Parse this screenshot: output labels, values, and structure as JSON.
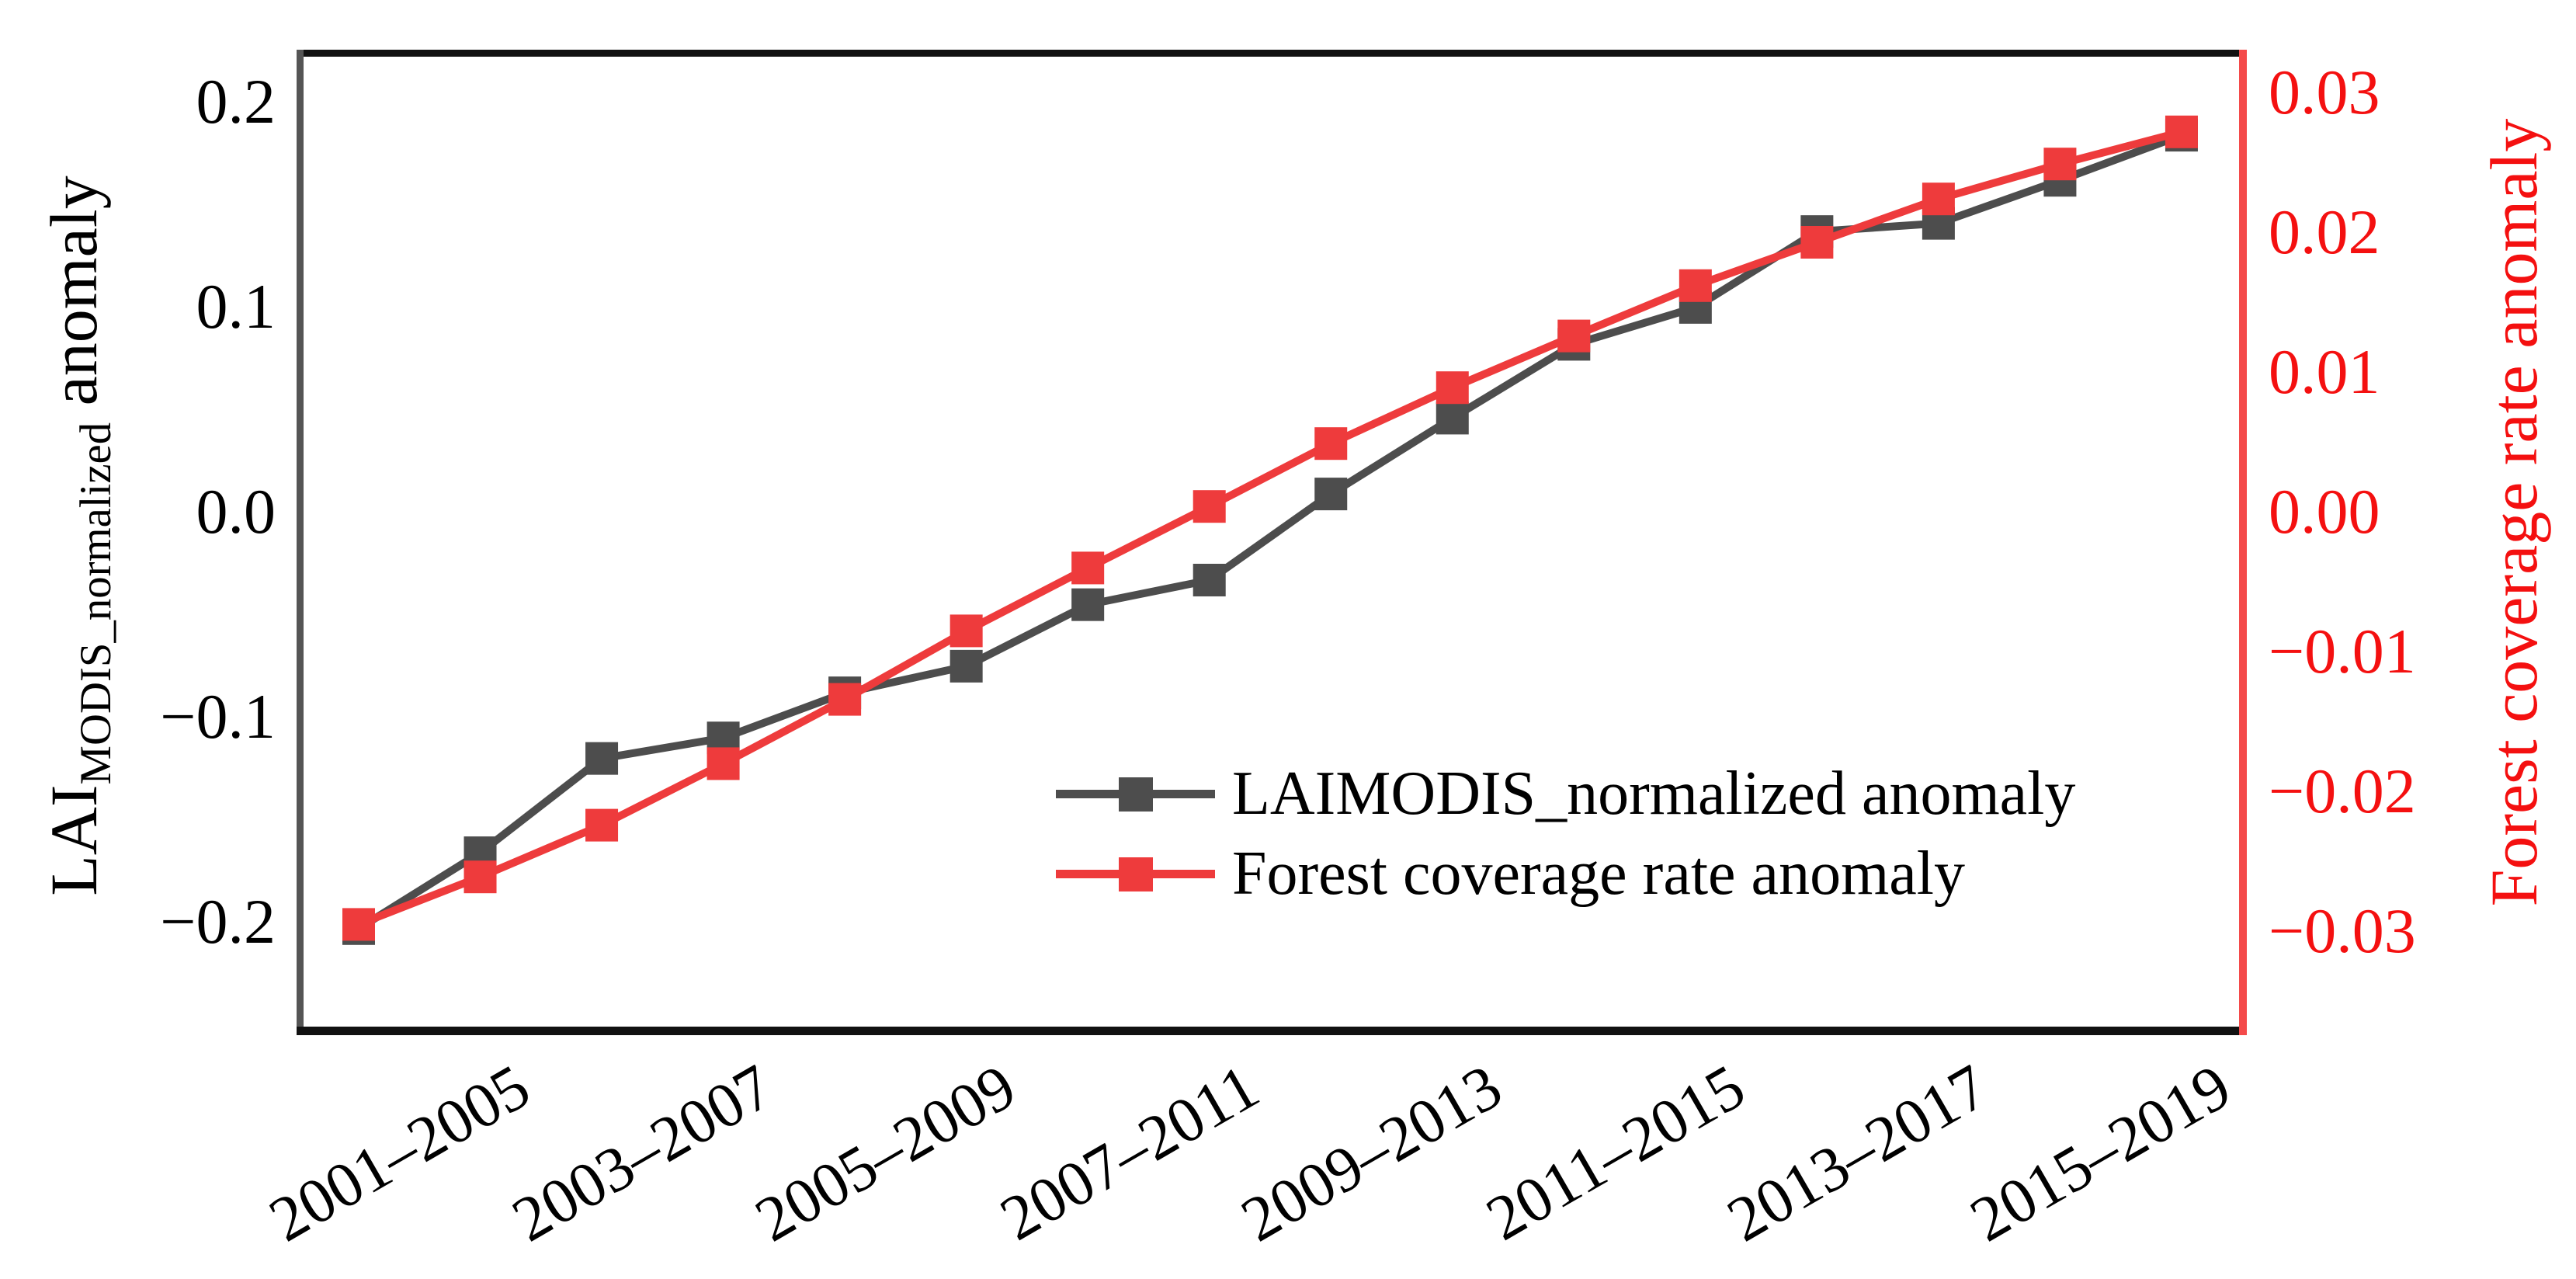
{
  "chart_data": {
    "type": "line",
    "title": "",
    "n_points": 16,
    "x_tick_labels": [
      "2001–2005",
      "2003–2007",
      "2005–2009",
      "2007–2011",
      "2009–2013",
      "2011–2015",
      "2013–2017",
      "2015–2019"
    ],
    "x_tick_point_indices": [
      1,
      3,
      5,
      7,
      9,
      11,
      13,
      15
    ],
    "series": [
      {
        "name": "LAIMODIS_normalized anomaly",
        "axis": "left",
        "color": "#4d4d4d",
        "marker": "square",
        "values": [
          -0.202,
          -0.165,
          -0.119,
          -0.109,
          -0.087,
          -0.074,
          -0.044,
          -0.032,
          0.01,
          0.047,
          0.083,
          0.101,
          0.138,
          0.142,
          0.163,
          0.185
        ]
      },
      {
        "name": "Forest coverage rate anomaly",
        "axis": "right",
        "color": "#ee3b3c",
        "marker": "square",
        "values": [
          -0.0293,
          -0.0259,
          -0.0222,
          -0.0178,
          -0.0132,
          -0.0083,
          -0.0038,
          0.0006,
          0.0051,
          0.0091,
          0.0128,
          0.0164,
          0.0195,
          0.0226,
          0.0251,
          0.0274
        ]
      }
    ],
    "y_axis_left": {
      "label_prefix": "LAI",
      "label_sub": "MODIS_normalized",
      "label_suffix": " anomaly",
      "tick_labels": [
        "0.2",
        "0.1",
        "0.0",
        "−0.1",
        "−0.2"
      ],
      "tick_values": [
        0.2,
        0.1,
        0.0,
        -0.1,
        -0.2
      ],
      "color": "#000000"
    },
    "y_axis_right": {
      "label": "Forest coverage rate anomaly",
      "tick_labels": [
        "0.03",
        "0.02",
        "0.01",
        "0.00",
        "−0.01",
        "−0.02",
        "−0.03"
      ],
      "tick_values": [
        0.03,
        0.02,
        0.01,
        0.0,
        -0.01,
        -0.02,
        -0.03
      ],
      "color": "#f41010"
    },
    "legend": {
      "position": "center-right",
      "entries": [
        "LAIMODIS_normalized anomaly",
        "Forest coverage rate anomaly"
      ]
    },
    "grid": false
  },
  "colors": {
    "lai_series": "#4d4d4d",
    "forest_series": "#ee3b3c",
    "right_axis_red": "#f41010",
    "spine_black": "#111111",
    "spine_gray": "#555555"
  }
}
